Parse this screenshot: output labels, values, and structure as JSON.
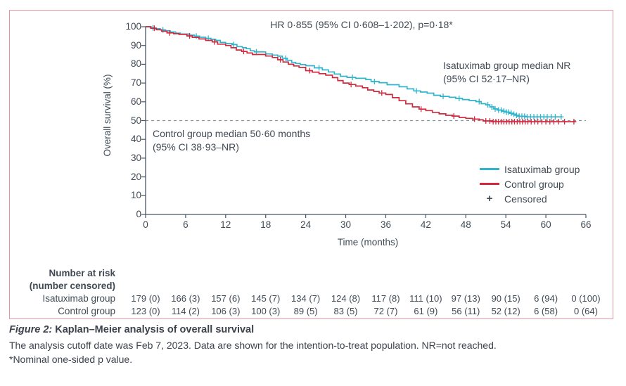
{
  "chart_data": {
    "type": "line",
    "subtype": "kaplan-meier-step",
    "title": "",
    "xlabel": "Time (months)",
    "ylabel": "Overall survival (%)",
    "xlim": [
      0,
      66
    ],
    "ylim": [
      0,
      100
    ],
    "xticks": [
      0,
      6,
      12,
      18,
      24,
      30,
      36,
      42,
      48,
      54,
      60,
      66
    ],
    "yticks": [
      0,
      10,
      20,
      30,
      40,
      50,
      60,
      70,
      80,
      90,
      100
    ],
    "grid": false,
    "reference_line_y": 50,
    "annotations": {
      "hr": "HR 0·855 (95% CI 0·608–1·202), p=0·18*",
      "isatuximab_median_line1": "Isatuximab group median NR",
      "isatuximab_median_line2": "(95% CI 52·17–NR)",
      "control_median_line1": "Control group median 50·60 months",
      "control_median_line2": "(95% CI 38·93–NR)"
    },
    "legend": {
      "position": "lower-right",
      "entries": [
        {
          "label": "Isatuximab group",
          "marker": "line",
          "color": "#2fb4cc"
        },
        {
          "label": "Control group",
          "marker": "line",
          "color": "#d0293e"
        },
        {
          "label": "Censored",
          "marker": "plus",
          "color": "#404a54"
        }
      ]
    },
    "series": [
      {
        "name": "Isatuximab group",
        "color": "#2fb4cc",
        "steps": [
          [
            0,
            100
          ],
          [
            0.7,
            99.4
          ],
          [
            1.4,
            98.9
          ],
          [
            2.2,
            98.3
          ],
          [
            3,
            97.8
          ],
          [
            3.7,
            97.2
          ],
          [
            4.5,
            96.6
          ],
          [
            5.2,
            96.1
          ],
          [
            6.5,
            95.5
          ],
          [
            7.3,
            95
          ],
          [
            8.1,
            94.4
          ],
          [
            9,
            93.8
          ],
          [
            9.8,
            93.3
          ],
          [
            10.5,
            92.7
          ],
          [
            11.2,
            91.6
          ],
          [
            12,
            91
          ],
          [
            13,
            90.5
          ],
          [
            13.7,
            89.4
          ],
          [
            14.5,
            88.8
          ],
          [
            15.1,
            88.3
          ],
          [
            15.7,
            87.2
          ],
          [
            16.3,
            86.6
          ],
          [
            18,
            85.5
          ],
          [
            19,
            84.9
          ],
          [
            19.8,
            84.3
          ],
          [
            20.5,
            83.2
          ],
          [
            21.2,
            82.1
          ],
          [
            21.9,
            81
          ],
          [
            22.5,
            80.4
          ],
          [
            23.2,
            79.8
          ],
          [
            24,
            79.2
          ],
          [
            25.3,
            78.1
          ],
          [
            26.5,
            77
          ],
          [
            27.4,
            75.9
          ],
          [
            28.3,
            74.8
          ],
          [
            29.2,
            73.6
          ],
          [
            30.2,
            73
          ],
          [
            31.5,
            72.5
          ],
          [
            33,
            71.9
          ],
          [
            33.8,
            70.8
          ],
          [
            35,
            70.2
          ],
          [
            36.2,
            69.1
          ],
          [
            38,
            68
          ],
          [
            39.2,
            66.9
          ],
          [
            40.2,
            65.8
          ],
          [
            41.2,
            65.2
          ],
          [
            42.2,
            64.6
          ],
          [
            43.2,
            63.5
          ],
          [
            44.2,
            62.9
          ],
          [
            45.5,
            62.4
          ],
          [
            46.5,
            61.8
          ],
          [
            47.5,
            61.2
          ],
          [
            48.5,
            60.7
          ],
          [
            49.5,
            60.1
          ],
          [
            50.3,
            59
          ],
          [
            51,
            58.4
          ],
          [
            51.6,
            57.3
          ],
          [
            52.2,
            56.2
          ],
          [
            52.8,
            55.6
          ],
          [
            53.4,
            55
          ],
          [
            54,
            54.5
          ],
          [
            54.5,
            53.9
          ],
          [
            55,
            53.4
          ],
          [
            55.5,
            52.8
          ],
          [
            56,
            52.3
          ],
          [
            57,
            52
          ],
          [
            62.3,
            52
          ]
        ],
        "censor_times": [
          1.1,
          2.6,
          7.6,
          9.4,
          13.2,
          16.6,
          21,
          26,
          31,
          34.3,
          40.6,
          44.6,
          47,
          50,
          51.3,
          51.9,
          52.4,
          52.9,
          53.3,
          53.7,
          54.1,
          54.4,
          54.8,
          55.2,
          55.6,
          56,
          56.4,
          56.8,
          57.2,
          57.7,
          58.2,
          58.7,
          59.2,
          59.7,
          60.2,
          60.8,
          61.4,
          62.3
        ]
      },
      {
        "name": "Control group",
        "color": "#d0293e",
        "steps": [
          [
            0,
            100
          ],
          [
            0.8,
            99.2
          ],
          [
            1.6,
            98.4
          ],
          [
            2.4,
            97.6
          ],
          [
            3.2,
            96.7
          ],
          [
            4.2,
            96.3
          ],
          [
            5,
            95.9
          ],
          [
            6.2,
            95.1
          ],
          [
            7,
            94.3
          ],
          [
            8,
            93.5
          ],
          [
            9,
            92.7
          ],
          [
            10,
            91.9
          ],
          [
            10.8,
            90.7
          ],
          [
            12,
            90
          ],
          [
            12.8,
            88.8
          ],
          [
            13.6,
            87.6
          ],
          [
            14.4,
            86.8
          ],
          [
            15.2,
            86
          ],
          [
            16,
            85.2
          ],
          [
            18,
            84.4
          ],
          [
            19,
            83.6
          ],
          [
            19.8,
            82.4
          ],
          [
            20.6,
            81.2
          ],
          [
            21.4,
            80
          ],
          [
            22.2,
            79.1
          ],
          [
            23,
            78.3
          ],
          [
            24,
            76.6
          ],
          [
            25,
            75.8
          ],
          [
            26,
            75
          ],
          [
            27,
            74.2
          ],
          [
            28,
            72.9
          ],
          [
            28.8,
            71.3
          ],
          [
            29.6,
            70
          ],
          [
            30.5,
            69.2
          ],
          [
            31.5,
            68.4
          ],
          [
            32.5,
            67.5
          ],
          [
            33.3,
            66.3
          ],
          [
            34.2,
            65.5
          ],
          [
            35,
            64.7
          ],
          [
            36,
            63.9
          ],
          [
            37,
            62.2
          ],
          [
            38,
            60.6
          ],
          [
            39,
            58.9
          ],
          [
            40,
            57.3
          ],
          [
            41,
            56.1
          ],
          [
            42,
            55.3
          ],
          [
            43,
            54.4
          ],
          [
            44,
            53.6
          ],
          [
            45,
            52.8
          ],
          [
            46,
            52.4
          ],
          [
            47,
            51.6
          ],
          [
            48,
            51.2
          ],
          [
            49,
            50.8
          ],
          [
            50,
            50.4
          ],
          [
            50.6,
            49.8
          ],
          [
            52,
            49.4
          ],
          [
            64.5,
            49.4
          ]
        ],
        "censor_times": [
          1.3,
          3.6,
          6.6,
          10.3,
          14.7,
          20.2,
          24.6,
          30.8,
          35.4,
          41.3,
          46.2,
          49.3,
          51,
          51.6,
          52.1,
          52.5,
          52.9,
          53.3,
          53.7,
          54.1,
          54.5,
          54.9,
          55.3,
          55.7,
          56.1,
          56.5,
          56.9,
          57.3,
          57.8,
          58.3,
          58.8,
          59.4,
          60,
          60.6,
          61.2,
          61.9,
          62.8,
          64.2
        ]
      }
    ]
  },
  "at_risk": {
    "header_line1": "Number at risk",
    "header_line2": "(number censored)",
    "rows": [
      {
        "label": "Isatuximab group",
        "values": [
          "179 (0)",
          "166 (3)",
          "157 (6)",
          "145 (7)",
          "134 (7)",
          "124 (8)",
          "117 (8)",
          "111 (10)",
          "97 (13)",
          "90 (15)",
          "6 (94)",
          "0 (100)"
        ]
      },
      {
        "label": "Control group",
        "values": [
          "123 (0)",
          "114 (2)",
          "106 (3)",
          "100 (3)",
          "89 (5)",
          "83 (5)",
          "72 (7)",
          "61 (9)",
          "56 (11)",
          "52 (12)",
          "6 (58)",
          "0 (64)"
        ]
      }
    ]
  },
  "caption": {
    "title_prefix": "Figure 2:",
    "title_rest": " Kaplan–Meier analysis of overall survival",
    "body": "The analysis cutoff date was Feb 7, 2023. Data are shown for the intention-to-treat population. NR=not reached.",
    "footnote": "*Nominal one-sided p value."
  },
  "colors": {
    "isatuximab": "#2fb4cc",
    "control": "#d0293e",
    "axis": "#4b5560",
    "text": "#404a54",
    "reference_line": "#8a969e",
    "panel_border": "#e795a0"
  }
}
